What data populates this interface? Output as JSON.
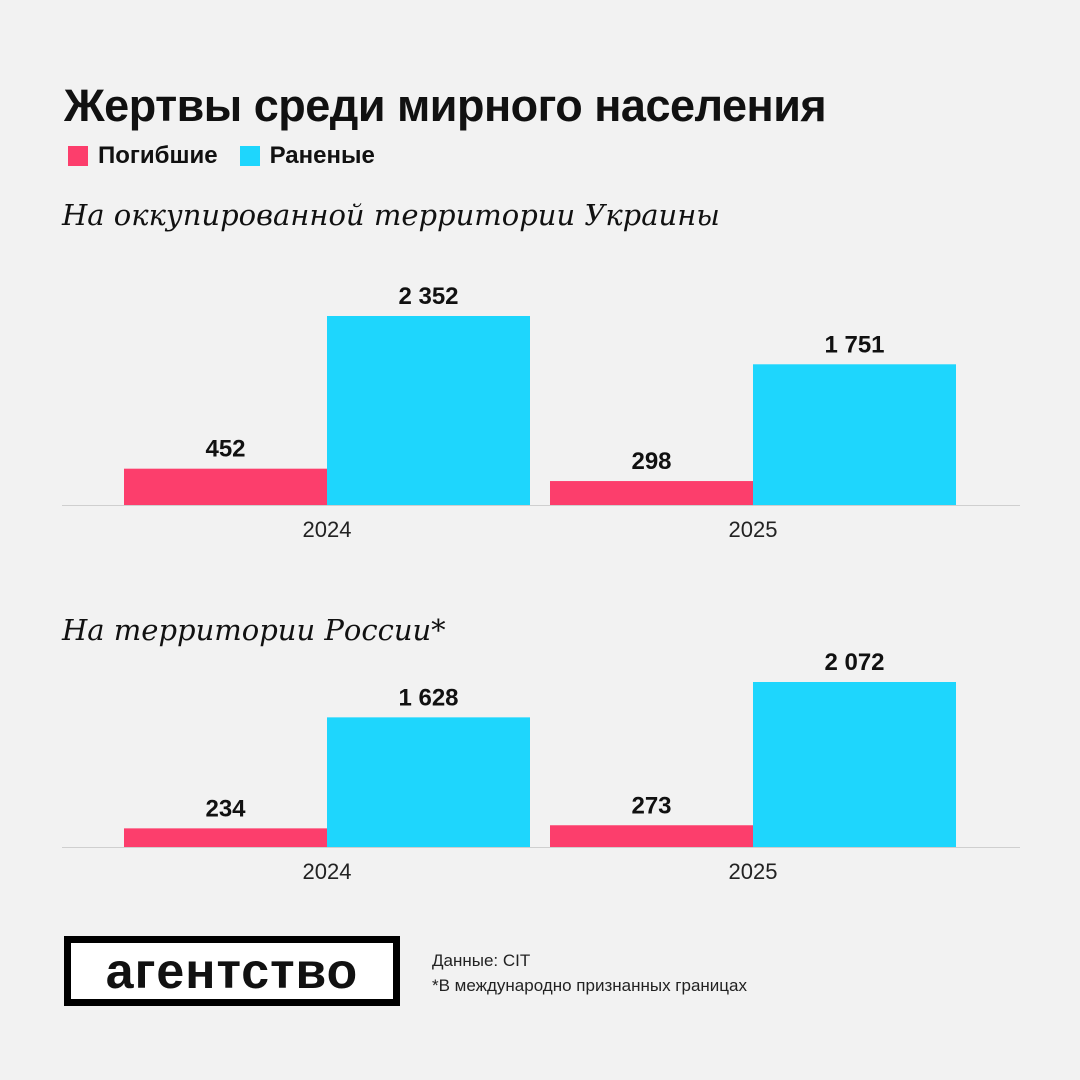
{
  "title": "Жертвы среди мирного населения",
  "colors": {
    "killed": "#fc3e6c",
    "wounded": "#1ed6fd"
  },
  "chart_data": [
    {
      "type": "bar",
      "title": "На оккупированной территории Украины",
      "categories": [
        "2024",
        "2025"
      ],
      "series": [
        {
          "name": "Погибшие",
          "values": [
            452,
            298
          ],
          "labels": [
            "452",
            "298"
          ]
        },
        {
          "name": "Раненые",
          "values": [
            2352,
            1751
          ],
          "labels": [
            "2 352",
            "1 751"
          ]
        }
      ],
      "ylim": [
        0,
        2352
      ],
      "grid": false,
      "legend": "top-left"
    },
    {
      "type": "bar",
      "title": "На территории России*",
      "categories": [
        "2024",
        "2025"
      ],
      "series": [
        {
          "name": "Погибшие",
          "values": [
            234,
            273
          ],
          "labels": [
            "234",
            "273"
          ]
        },
        {
          "name": "Раненые",
          "values": [
            1628,
            2072
          ],
          "labels": [
            "1 628",
            "2 072"
          ]
        }
      ],
      "ylim": [
        0,
        2072
      ],
      "grid": false,
      "legend": "top-left"
    }
  ],
  "logo": "агентство",
  "footnotes": {
    "source": "Данные: CIT",
    "note": "*В международно признанных границах"
  }
}
